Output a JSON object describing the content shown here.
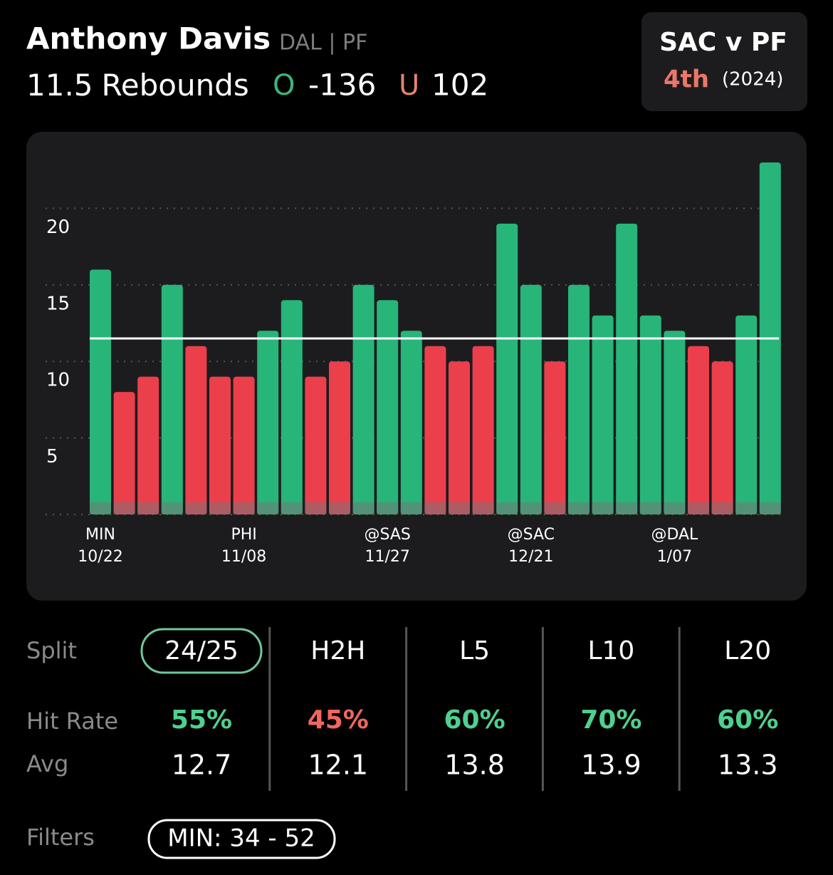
{
  "header": {
    "player": "Anthony Davis",
    "team": "DAL | PF",
    "line_value": 11.5,
    "stat": "Rebounds",
    "over_label": "O",
    "over_odds": "-136",
    "under_label": "U",
    "under_odds": "102"
  },
  "matchup": {
    "title": "SAC v PF",
    "rank": "4th",
    "season": "(2024)"
  },
  "chart_data": {
    "type": "bar",
    "categories": [
      [
        "MIN",
        "10/22"
      ],
      null,
      null,
      null,
      null,
      null,
      [
        "PHI",
        "11/08"
      ],
      null,
      null,
      null,
      null,
      null,
      [
        "@SAS",
        "11/27"
      ],
      null,
      null,
      null,
      null,
      null,
      [
        "@SAC",
        "12/21"
      ],
      null,
      null,
      null,
      null,
      null,
      [
        "@DAL",
        "1/07"
      ],
      null,
      null,
      null,
      null
    ],
    "values": [
      16,
      8,
      9,
      15,
      11,
      9,
      9,
      12,
      14,
      9,
      10,
      15,
      14,
      12,
      11,
      10,
      11,
      19,
      15,
      10,
      15,
      13,
      19,
      13,
      12,
      11,
      10,
      13,
      23
    ],
    "colors": {
      "over": "#27b57a",
      "under": "#ec3f4c"
    },
    "ylim": [
      0,
      25
    ],
    "yticks": [
      5,
      10,
      15,
      20
    ],
    "grid": true
  },
  "splits": {
    "row_labels": [
      "Split",
      "Hit Rate",
      "Avg"
    ],
    "columns": [
      {
        "name": "24/25",
        "hit_rate": "55%",
        "avg": 12.7,
        "tone": "over",
        "selected": true
      },
      {
        "name": "H2H",
        "hit_rate": "45%",
        "avg": 12.1,
        "tone": "under",
        "selected": false
      },
      {
        "name": "L5",
        "hit_rate": "60%",
        "avg": 13.8,
        "tone": "over",
        "selected": false
      },
      {
        "name": "L10",
        "hit_rate": "70%",
        "avg": 13.9,
        "tone": "over",
        "selected": false
      },
      {
        "name": "L20",
        "hit_rate": "60%",
        "avg": 13.3,
        "tone": "over",
        "selected": false
      }
    ],
    "tone_colors": {
      "over": "#4fd08f",
      "under": "#f0675f"
    }
  },
  "filters": {
    "label": "Filters",
    "chips": [
      "MIN: 34 - 52"
    ]
  }
}
